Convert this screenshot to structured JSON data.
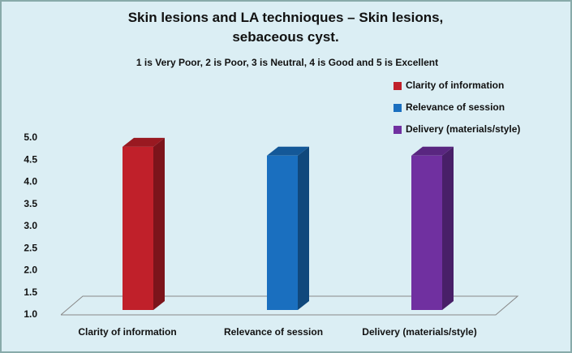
{
  "chart_data": {
    "type": "bar3d",
    "title": "Skin lesions and LA technioques – Skin lesions, sebaceous cyst.",
    "subtitle": "1 is Very Poor, 2 is Poor, 3 is Neutral, 4 is Good and 5 is Excellent",
    "categories": [
      "Clarity of information",
      "Relevance of session",
      "Delivery (materials/style)"
    ],
    "series": [
      {
        "name": "Clarity of information",
        "color": "#c0202a",
        "values": [
          4.8,
          null,
          null
        ]
      },
      {
        "name": "Relevance of session",
        "color": "#1a6fbf",
        "values": [
          null,
          4.6,
          null
        ]
      },
      {
        "name": "Delivery (materials/style)",
        "color": "#7030a0",
        "values": [
          null,
          null,
          4.6
        ]
      }
    ],
    "ylim": [
      1.0,
      5.0
    ],
    "yticks": [
      {
        "value": 1.0,
        "label": "1.0"
      },
      {
        "value": 1.5,
        "label": "1.5"
      },
      {
        "value": 2.0,
        "label": "2.0"
      },
      {
        "value": 2.5,
        "label": "2.5"
      },
      {
        "value": 3.0,
        "label": "3.0"
      },
      {
        "value": 3.5,
        "label": "3.5"
      },
      {
        "value": 4.0,
        "label": "4.0"
      },
      {
        "value": 4.5,
        "label": "4.5"
      },
      {
        "value": 5.0,
        "label": "5.0"
      }
    ],
    "legend": "top-right"
  }
}
